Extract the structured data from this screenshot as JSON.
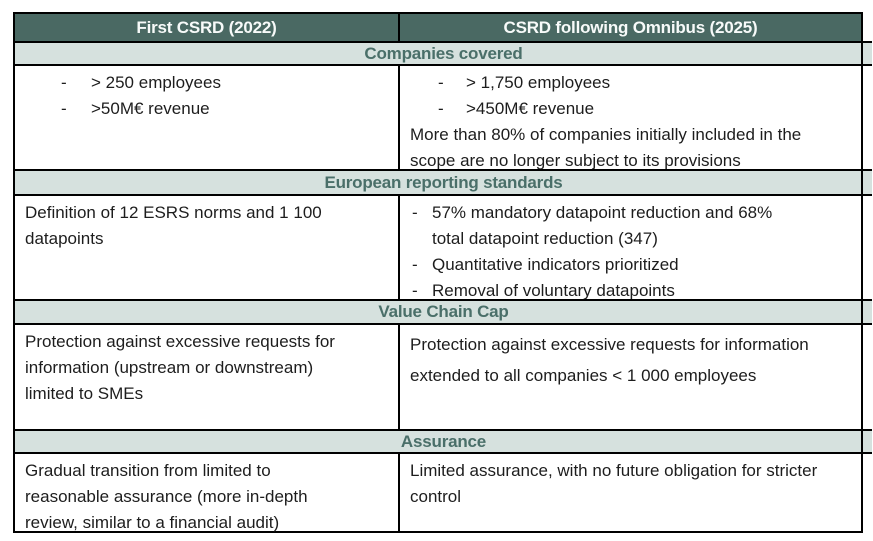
{
  "colors": {
    "header_bg": "#4a6963",
    "header_text": "#f7faf9",
    "section_bg": "#d6e1de",
    "section_text": "#4a6f69",
    "body_text": "#1d1d1d",
    "border": "#000000"
  },
  "header": {
    "col1": "First CSRD (2022)",
    "col2": "CSRD following Omnibus (2025)"
  },
  "sections": [
    {
      "title": "Companies covered",
      "left": {
        "bullets": [
          "> 250 employees",
          ">50M€ revenue"
        ]
      },
      "right": {
        "bullets": [
          "> 1,750 employees",
          ">450M€ revenue"
        ],
        "paragraph": "More than 80% of companies initially included in the scope are no longer subject to its provisions"
      }
    },
    {
      "title": "European reporting standards",
      "left": {
        "paragraph": "Definition of 12 ESRS norms and 1 100 datapoints"
      },
      "right": {
        "bullets": [
          "57% mandatory datapoint reduction and 68% total datapoint reduction (347)",
          "Quantitative indicators prioritized",
          "Removal of voluntary datapoints"
        ]
      }
    },
    {
      "title": "Value Chain Cap",
      "left": {
        "paragraph": "Protection against excessive requests for information (upstream or downstream) limited to SMEs"
      },
      "right": {
        "paragraph": "Protection against excessive requests for information extended to all companies < 1 000 employees"
      }
    },
    {
      "title": "Assurance",
      "left": {
        "paragraph": "Gradual transition from limited to reasonable assurance (more in-depth review, similar to a financial audit)"
      },
      "right": {
        "paragraph": "Limited assurance, with no future obligation for stricter control"
      }
    }
  ]
}
